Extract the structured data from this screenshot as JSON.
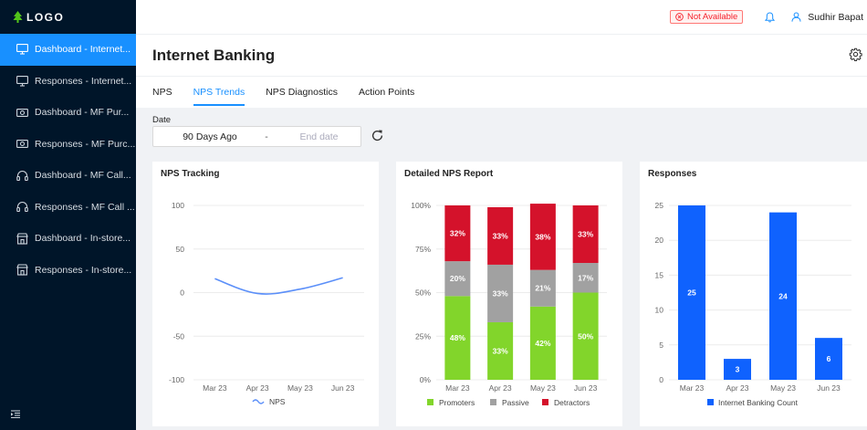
{
  "logo": {
    "text": "LOGO"
  },
  "sidebar": {
    "items": [
      {
        "label": "Dashboard - Internet...",
        "icon": "desktop-icon"
      },
      {
        "label": "Responses - Internet...",
        "icon": "desktop-icon"
      },
      {
        "label": "Dashboard - MF Pur...",
        "icon": "money-icon"
      },
      {
        "label": "Responses - MF Purc...",
        "icon": "money-icon"
      },
      {
        "label": "Dashboard - MF Call...",
        "icon": "headset-icon"
      },
      {
        "label": "Responses - MF Call ...",
        "icon": "headset-icon"
      },
      {
        "label": "Dashboard - In-store...",
        "icon": "shop-icon"
      },
      {
        "label": "Responses - In-store...",
        "icon": "shop-icon"
      }
    ]
  },
  "header": {
    "status": "Not Available",
    "user_name": "Sudhir Bapat"
  },
  "page": {
    "title": "Internet Banking"
  },
  "tabs": [
    {
      "label": "NPS"
    },
    {
      "label": "NPS Trends"
    },
    {
      "label": "NPS Diagnostics"
    },
    {
      "label": "Action Points"
    }
  ],
  "filters": {
    "date_label": "Date",
    "start": "90 Days Ago",
    "separator": "-",
    "end_placeholder": "End date"
  },
  "colors": {
    "brand_blue": "#1890ff",
    "sidebar_bg": "#001529",
    "promoters": "#82d52b",
    "passive": "#a1a1a1",
    "detractors": "#d4122b",
    "responses_bar": "#0f62fe",
    "nps_line": "#5b8ff9"
  },
  "chart_data": [
    {
      "type": "line",
      "title": "NPS Tracking",
      "x": [
        "Mar 23",
        "Apr 23",
        "May 23",
        "Jun 23"
      ],
      "series": [
        {
          "name": "NPS",
          "values": [
            16,
            -1,
            4,
            17
          ]
        }
      ],
      "ylim": [
        -100,
        100
      ],
      "yticks": [
        "100",
        "50",
        "0",
        "-50",
        "-100"
      ],
      "legend": "bottom"
    },
    {
      "type": "bar",
      "stacked": true,
      "title": "Detailed NPS Report",
      "categories": [
        "Mar 23",
        "Apr 23",
        "May 23",
        "Jun 23"
      ],
      "series": [
        {
          "name": "Promoters",
          "values": [
            48,
            33,
            42,
            50
          ],
          "labels": [
            "48%",
            "33%",
            "42%",
            "50%"
          ]
        },
        {
          "name": "Passive",
          "values": [
            20,
            33,
            21,
            17
          ],
          "labels": [
            "20%",
            "33%",
            "21%",
            "17%"
          ]
        },
        {
          "name": "Detractors",
          "values": [
            32,
            33,
            38,
            33
          ],
          "labels": [
            "32%",
            "33%",
            "38%",
            "33%"
          ]
        }
      ],
      "ylim": [
        0,
        100
      ],
      "yticks": [
        "0%",
        "25%",
        "50%",
        "75%",
        "100%"
      ],
      "legend": "bottom"
    },
    {
      "type": "bar",
      "title": "Responses",
      "categories": [
        "Mar 23",
        "Apr 23",
        "May 23",
        "Jun 23"
      ],
      "series": [
        {
          "name": "Internet Banking Count",
          "values": [
            25,
            3,
            24,
            6
          ],
          "labels": [
            "25",
            "3",
            "24",
            "6"
          ]
        }
      ],
      "ylim": [
        0,
        25
      ],
      "yticks": [
        "0",
        "5",
        "10",
        "15",
        "20",
        "25"
      ],
      "legend": "bottom"
    }
  ]
}
